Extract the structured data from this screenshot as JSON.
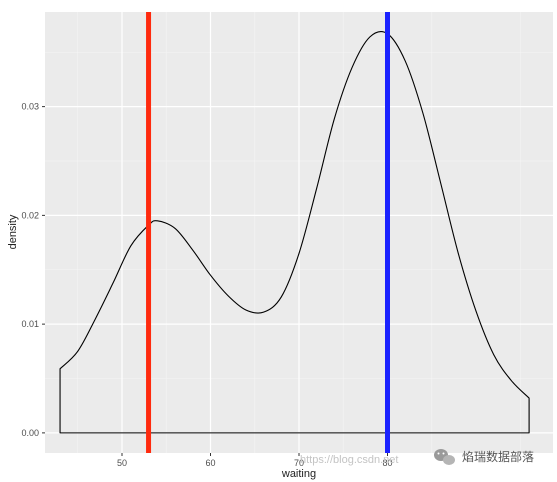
{
  "chart_data": {
    "type": "area",
    "title": "",
    "xlabel": "waiting",
    "ylabel": "density",
    "xlim": [
      41.3,
      98.7
    ],
    "ylim": [
      -0.00185,
      0.0387
    ],
    "x_ticks": [
      50,
      60,
      70,
      80
    ],
    "x_tick_labels": [
      "50",
      "60",
      "70",
      "80"
    ],
    "x_minor_ticks": [
      45,
      55,
      65,
      75,
      85,
      95
    ],
    "y_ticks": [
      0,
      0.01,
      0.02,
      0.03
    ],
    "y_tick_labels": [
      "0.00",
      "0.01",
      "0.02",
      "0.03"
    ],
    "y_minor_ticks": [
      0.005,
      0.015,
      0.025,
      0.035
    ],
    "grid": true,
    "panel_background": "#ebebeb",
    "curve_color": "#000000",
    "series": [
      {
        "x": [
          43,
          45,
          47,
          49,
          51,
          53,
          54,
          56,
          58,
          60,
          62,
          64,
          66,
          68,
          70,
          72,
          74,
          76,
          78,
          80,
          82,
          84,
          86,
          88,
          90,
          92,
          94,
          96
        ],
        "y": [
          0.0059,
          0.0075,
          0.0105,
          0.0138,
          0.0172,
          0.0191,
          0.0195,
          0.0188,
          0.0168,
          0.0145,
          0.0126,
          0.0113,
          0.0111,
          0.0125,
          0.0165,
          0.0225,
          0.0289,
          0.0336,
          0.0364,
          0.0367,
          0.0342,
          0.0294,
          0.023,
          0.0165,
          0.0112,
          0.0072,
          0.0048,
          0.0032
        ]
      }
    ],
    "vlines": [
      {
        "x": 53,
        "color": "#ff2a0e"
      },
      {
        "x": 80,
        "color": "#1a22ff"
      }
    ]
  },
  "watermark": {
    "url": "https://blog.csdn.net",
    "brand": "焰瑞数据部落"
  }
}
